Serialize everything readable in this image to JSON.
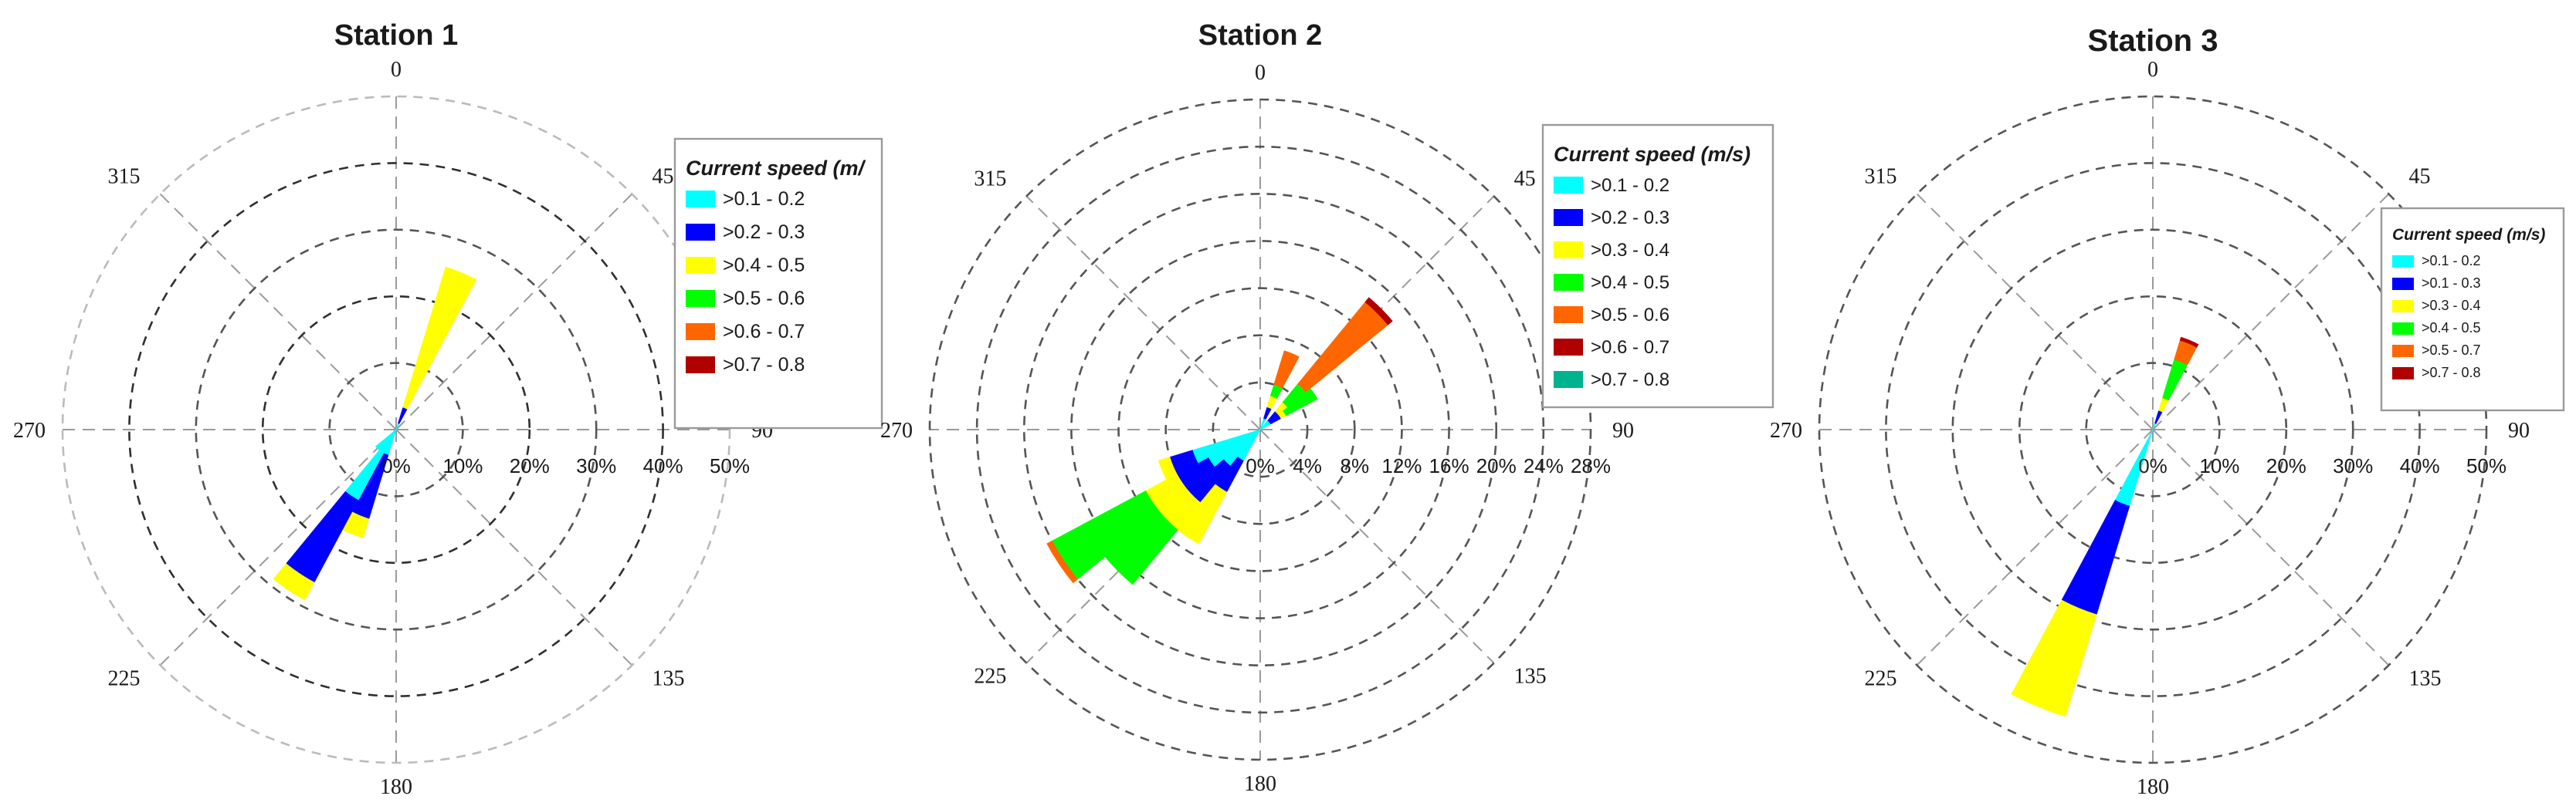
{
  "figure": {
    "directions": [
      "0",
      "45",
      "90",
      "135",
      "180",
      "225",
      "270",
      "315"
    ]
  },
  "chart_data": [
    {
      "type": "wind-rose",
      "title": "Station 1",
      "legend_title": "Current speed (m/",
      "radial_ticks": [
        "0%",
        "10%",
        "20%",
        "30%",
        "40%",
        "50%"
      ],
      "rmax": 50,
      "bins": [
        {
          "label": ">0.1 - 0.2",
          "color": "#00ffff"
        },
        {
          "label": ">0.2 - 0.3",
          "color": "#0000ff"
        },
        {
          "label": ">0.4 - 0.5",
          "color": "#ffff00"
        },
        {
          "label": ">0.5 - 0.6",
          "color": "#00ff00"
        },
        {
          "label": ">0.6 - 0.7",
          "color": "#ff6600"
        },
        {
          "label": ">0.7 - 0.8",
          "color": "#b00000"
        }
      ],
      "petals": [
        {
          "direction": 22.5,
          "values": [
            1,
            2.5,
            22,
            0,
            0,
            0
          ]
        },
        {
          "direction": 202.5,
          "values": [
            4,
            10,
            3,
            0,
            0,
            0
          ]
        },
        {
          "direction": 213.75,
          "values": [
            12,
            14,
            3,
            0,
            0,
            0
          ]
        },
        {
          "direction": 225,
          "values": [
            4,
            0,
            0,
            0,
            0,
            0
          ]
        }
      ]
    },
    {
      "type": "wind-rose",
      "title": "Station 2",
      "legend_title": "Current speed (m/s)",
      "radial_ticks": [
        "0%",
        "4%",
        "8%",
        "12%",
        "16%",
        "20%",
        "24%",
        "28%"
      ],
      "rmax": 28,
      "bins": [
        {
          "label": ">0.1 - 0.2",
          "color": "#00ffff"
        },
        {
          "label": ">0.2 - 0.3",
          "color": "#0000ff"
        },
        {
          "label": ">0.3 - 0.4",
          "color": "#ffff00"
        },
        {
          "label": ">0.4 - 0.5",
          "color": "#00ff00"
        },
        {
          "label": ">0.5 - 0.6",
          "color": "#ff6600"
        },
        {
          "label": ">0.6 - 0.7",
          "color": "#b00000"
        },
        {
          "label": ">0.7 - 0.8",
          "color": "#00b38f"
        }
      ],
      "petals": [
        {
          "direction": 22.5,
          "values": [
            1,
            1,
            1,
            1,
            3,
            0,
            0
          ]
        },
        {
          "direction": 45,
          "values": [
            1,
            1,
            1,
            2,
            9,
            0.5,
            0
          ]
        },
        {
          "direction": 56.25,
          "values": [
            1,
            1,
            0.5,
            3,
            0,
            0,
            0
          ]
        },
        {
          "direction": 236.25,
          "values": [
            5,
            3,
            3,
            9,
            0.5,
            0,
            0
          ]
        },
        {
          "direction": 225,
          "values": [
            4,
            4,
            3,
            6,
            0,
            0,
            0
          ]
        },
        {
          "direction": 213.75,
          "values": [
            3,
            3,
            5,
            0,
            0,
            0,
            0
          ]
        },
        {
          "direction": 247.5,
          "values": [
            6,
            2,
            1,
            0,
            0,
            0,
            0
          ]
        }
      ]
    },
    {
      "type": "wind-rose",
      "title": "Station 3",
      "legend_title": "Current speed (m/s)",
      "radial_ticks": [
        "0%",
        "10%",
        "20%",
        "30%",
        "40%",
        "50%"
      ],
      "rmax": 50,
      "bins": [
        {
          "label": ">0.1 - 0.2",
          "color": "#00ffff"
        },
        {
          "label": ">0.1 - 0.3",
          "color": "#0000ff"
        },
        {
          "label": ">0.3 - 0.4",
          "color": "#ffff00"
        },
        {
          "label": ">0.4 - 0.5",
          "color": "#00ff00"
        },
        {
          "label": ">0.5 - 0.7",
          "color": "#ff6600"
        },
        {
          "label": ">0.7 - 0.8",
          "color": "#b00000"
        }
      ],
      "petals": [
        {
          "direction": 22.5,
          "values": [
            1,
            2,
            2,
            6,
            3,
            0.5
          ]
        },
        {
          "direction": 202.5,
          "values": [
            12,
            17,
            16,
            0,
            0,
            0
          ]
        }
      ]
    }
  ]
}
